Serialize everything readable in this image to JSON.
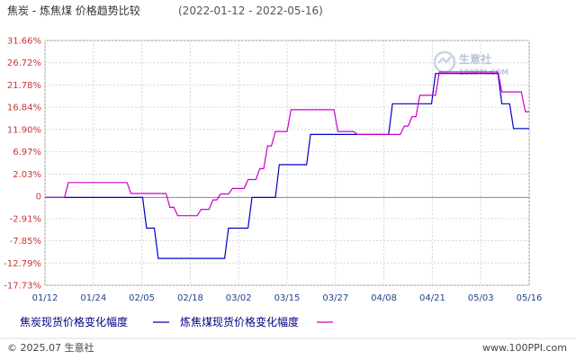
{
  "header": {
    "title": "焦炭 - 炼焦煤 价格趋势比较",
    "date_range": "(2022-01-12 - 2022-05-16)"
  },
  "watermark": {
    "name": "生意社",
    "site": "100PPI.COM"
  },
  "footer": {
    "copyright": "© 2025.07 生意社",
    "site": "www.100PPI.com"
  },
  "chart_data": {
    "type": "line",
    "title": "焦炭 - 炼焦煤 价格趋势比较",
    "subtitle": "(2022-01-12 - 2022-05-16)",
    "xlabel": "",
    "ylabel": "",
    "x_start": "2022-01-12",
    "x_end": "2022-05-16",
    "x_ticks": [
      "01/12",
      "01/24",
      "02/05",
      "02/18",
      "03/02",
      "03/15",
      "03/27",
      "04/08",
      "04/21",
      "05/03",
      "05/16"
    ],
    "y_ticks": [
      "31.66%",
      "26.72%",
      "21.78%",
      "16.84%",
      "11.90%",
      "6.97%",
      "2.03%",
      "0",
      "-2.91%",
      "-7.85%",
      "-12.79%",
      "-17.73%"
    ],
    "ylim": [
      -17.73,
      31.66
    ],
    "grid": true,
    "legend_position": "bottom-left",
    "series": [
      {
        "name": "焦炭现货价格变化幅度",
        "color": "#0000cc",
        "points": [
          [
            "2022-01-12",
            0
          ],
          [
            "2022-02-06",
            0
          ],
          [
            "2022-02-07",
            -6.2
          ],
          [
            "2022-02-09",
            -6.2
          ],
          [
            "2022-02-10",
            -12.3
          ],
          [
            "2022-02-27",
            -12.3
          ],
          [
            "2022-02-28",
            -6.2
          ],
          [
            "2022-03-05",
            -6.2
          ],
          [
            "2022-03-06",
            0
          ],
          [
            "2022-03-12",
            0
          ],
          [
            "2022-03-13",
            6.6
          ],
          [
            "2022-03-20",
            6.6
          ],
          [
            "2022-03-21",
            12.7
          ],
          [
            "2022-04-10",
            12.7
          ],
          [
            "2022-04-11",
            18.9
          ],
          [
            "2022-04-21",
            18.9
          ],
          [
            "2022-04-22",
            25.0
          ],
          [
            "2022-05-08",
            25.0
          ],
          [
            "2022-05-09",
            18.9
          ],
          [
            "2022-05-11",
            18.9
          ],
          [
            "2022-05-12",
            13.9
          ],
          [
            "2022-05-16",
            13.9
          ]
        ]
      },
      {
        "name": "炼焦煤现货价格变化幅度",
        "color": "#cc00cc",
        "points": [
          [
            "2022-01-12",
            0
          ],
          [
            "2022-01-17",
            0
          ],
          [
            "2022-01-18",
            3.0
          ],
          [
            "2022-02-02",
            3.0
          ],
          [
            "2022-02-03",
            0.8
          ],
          [
            "2022-02-12",
            0.8
          ],
          [
            "2022-02-13",
            -2.0
          ],
          [
            "2022-02-14",
            -2.0
          ],
          [
            "2022-02-15",
            -3.7
          ],
          [
            "2022-02-20",
            -3.7
          ],
          [
            "2022-02-21",
            -2.4
          ],
          [
            "2022-02-23",
            -2.4
          ],
          [
            "2022-02-24",
            -0.5
          ],
          [
            "2022-02-25",
            -0.5
          ],
          [
            "2022-02-26",
            0.7
          ],
          [
            "2022-02-28",
            0.7
          ],
          [
            "2022-03-01",
            1.8
          ],
          [
            "2022-03-04",
            1.8
          ],
          [
            "2022-03-05",
            3.6
          ],
          [
            "2022-03-07",
            3.6
          ],
          [
            "2022-03-08",
            5.8
          ],
          [
            "2022-03-09",
            5.8
          ],
          [
            "2022-03-10",
            10.4
          ],
          [
            "2022-03-11",
            10.4
          ],
          [
            "2022-03-12",
            13.3
          ],
          [
            "2022-03-15",
            13.3
          ],
          [
            "2022-03-16",
            17.7
          ],
          [
            "2022-03-27",
            17.7
          ],
          [
            "2022-03-28",
            13.3
          ],
          [
            "2022-04-01",
            13.3
          ],
          [
            "2022-04-02",
            12.7
          ],
          [
            "2022-04-13",
            12.7
          ],
          [
            "2022-04-14",
            14.4
          ],
          [
            "2022-04-15",
            14.4
          ],
          [
            "2022-04-16",
            16.3
          ],
          [
            "2022-04-17",
            16.3
          ],
          [
            "2022-04-18",
            20.6
          ],
          [
            "2022-04-22",
            20.6
          ],
          [
            "2022-04-23",
            25.3
          ],
          [
            "2022-05-08",
            25.3
          ],
          [
            "2022-05-09",
            21.3
          ],
          [
            "2022-05-14",
            21.3
          ],
          [
            "2022-05-15",
            17.3
          ],
          [
            "2022-05-16",
            17.3
          ]
        ]
      }
    ]
  }
}
